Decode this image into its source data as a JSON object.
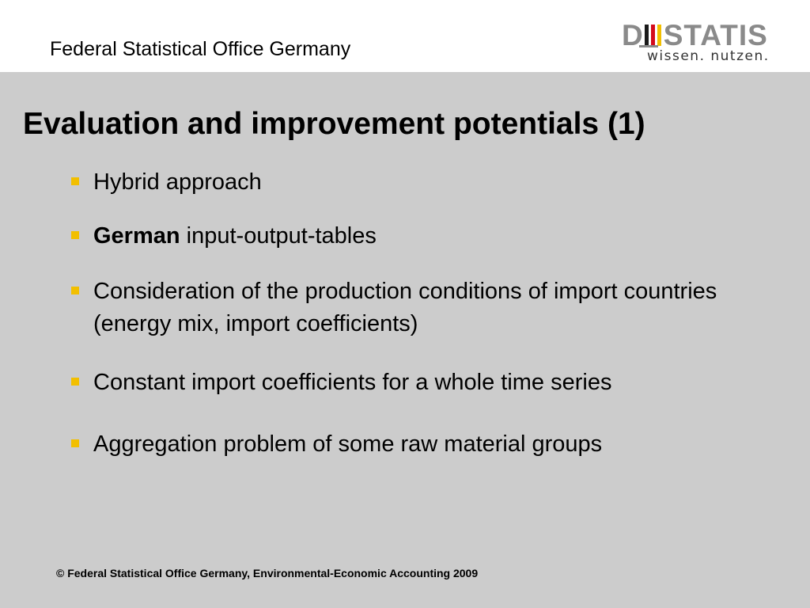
{
  "header": {
    "organization": "Federal Statistical Office Germany",
    "logo": {
      "word_start": "D",
      "word_end": "STATIS",
      "tagline": "wissen. nutzen.",
      "flag_colors": [
        "#1a1a1a",
        "#d40b1c",
        "#f2bf00"
      ]
    }
  },
  "slide": {
    "title": "Evaluation and improvement potentials (1)",
    "bullet_color": "#f2bf00",
    "bullets": [
      {
        "text": "Hybrid approach"
      },
      {
        "bold": "German",
        "text": " input-output-tables"
      },
      {
        "text": "Consideration of the production conditions of import countries (energy mix, import coefficients)"
      },
      {
        "text": "Constant import coefficients for a whole time series"
      },
      {
        "text": "Aggregation problem of some raw material groups"
      }
    ]
  },
  "footer": {
    "copyright": "© Federal Statistical Office Germany, Environmental-Economic Accounting 2009"
  }
}
